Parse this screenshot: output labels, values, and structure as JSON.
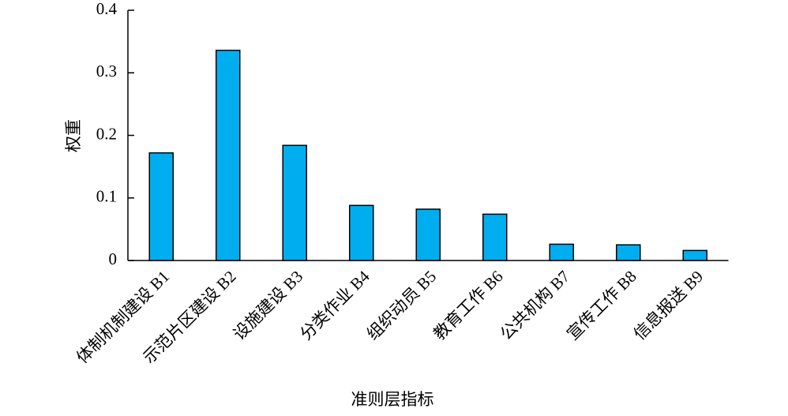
{
  "chart_data": {
    "type": "bar",
    "x_label": "准则层指标",
    "y_label": "权重",
    "categories": [
      "体制机制建设 B1",
      "示范片区建设 B2",
      "设施建设 B3",
      "分类作业 B4",
      "组织动员 B5",
      "教育工作 B6",
      "公共机构 B7",
      "宣传工作 B8",
      "信息报送 B9"
    ],
    "values": [
      0.172,
      0.336,
      0.184,
      0.088,
      0.082,
      0.074,
      0.026,
      0.025,
      0.016
    ],
    "color": "#00aeef",
    "ylim": [
      0,
      0.4
    ],
    "yticks": [
      0,
      0.1,
      0.2,
      0.3,
      0.4
    ],
    "grid": false
  }
}
